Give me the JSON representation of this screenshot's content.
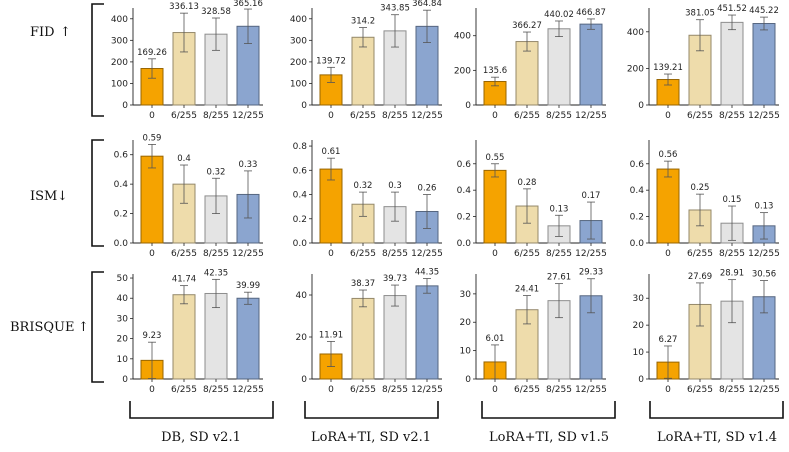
{
  "bar_colors": [
    "#f5a300",
    "#eedcab",
    "#e4e4e4",
    "#8ba5cf"
  ],
  "row_labels": [
    {
      "metric": "FID",
      "arrow": "↑"
    },
    {
      "metric": "ISM",
      "arrow": "↓"
    },
    {
      "metric": "BRISQUE",
      "arrow": "↑"
    }
  ],
  "column_labels": [
    "DB, SD v2.1",
    "LoRA+TI, SD v2.1",
    "LoRA+TI, SD v1.5",
    "LoRA+TI, SD v1.4"
  ],
  "chart_data": [
    {
      "type": "bar",
      "metric": "FID",
      "setting": "DB, SD v2.1",
      "categories": [
        "0",
        "6/255",
        "8/255",
        "12/255"
      ],
      "values": [
        169.26,
        336.13,
        328.58,
        365.16
      ],
      "errors": [
        45,
        90,
        75,
        80
      ],
      "value_labels": [
        "169.26",
        "336.13",
        "328.58",
        "365.16"
      ],
      "ylim": [
        0,
        450
      ],
      "yticks": [
        0,
        100,
        200,
        300,
        400
      ]
    },
    {
      "type": "bar",
      "metric": "FID",
      "setting": "LoRA+TI, SD v2.1",
      "categories": [
        "0",
        "6/255",
        "8/255",
        "12/255"
      ],
      "values": [
        139.72,
        314.2,
        343.85,
        364.84
      ],
      "errors": [
        35,
        45,
        75,
        75
      ],
      "value_labels": [
        "139.72",
        "314.2",
        "343.85",
        "364.84"
      ],
      "ylim": [
        0,
        450
      ],
      "yticks": [
        0,
        100,
        200,
        300,
        400
      ]
    },
    {
      "type": "bar",
      "metric": "FID",
      "setting": "LoRA+TI, SD v1.5",
      "categories": [
        "0",
        "6/255",
        "8/255",
        "12/255"
      ],
      "values": [
        135.6,
        366.27,
        440.02,
        466.87
      ],
      "errors": [
        25,
        55,
        45,
        30
      ],
      "value_labels": [
        "135.6",
        "366.27",
        "440.02",
        "466.87"
      ],
      "ylim": [
        0,
        560
      ],
      "yticks": [
        0,
        200,
        400
      ]
    },
    {
      "type": "bar",
      "metric": "FID",
      "setting": "LoRA+TI, SD v1.4",
      "categories": [
        "0",
        "6/255",
        "8/255",
        "12/255"
      ],
      "values": [
        139.21,
        381.05,
        451.52,
        445.22
      ],
      "errors": [
        30,
        85,
        40,
        35
      ],
      "value_labels": [
        "139.21",
        "381.05",
        "451.52",
        "445.22"
      ],
      "ylim": [
        0,
        530
      ],
      "yticks": [
        0,
        200,
        400
      ]
    },
    {
      "type": "bar",
      "metric": "ISM",
      "setting": "DB, SD v2.1",
      "categories": [
        "0",
        "6/255",
        "8/255",
        "12/255"
      ],
      "values": [
        0.59,
        0.4,
        0.32,
        0.33
      ],
      "errors": [
        0.08,
        0.13,
        0.12,
        0.16
      ],
      "value_labels": [
        "0.59",
        "0.4",
        "0.32",
        "0.33"
      ],
      "ylim": [
        0,
        0.7
      ],
      "yticks": [
        0,
        0.2,
        0.4,
        0.6
      ],
      "ytick_labels": [
        "0.0",
        "0.2",
        "0.4",
        "0.6"
      ]
    },
    {
      "type": "bar",
      "metric": "ISM",
      "setting": "LoRA+TI, SD v2.1",
      "categories": [
        "0",
        "6/255",
        "8/255",
        "12/255"
      ],
      "values": [
        0.61,
        0.32,
        0.3,
        0.26
      ],
      "errors": [
        0.09,
        0.1,
        0.12,
        0.14
      ],
      "value_labels": [
        "0.61",
        "0.32",
        "0.3",
        "0.26"
      ],
      "ylim": [
        0,
        0.85
      ],
      "yticks": [
        0,
        0.2,
        0.4,
        0.6,
        0.8
      ],
      "ytick_labels": [
        "0.0",
        "0.2",
        "0.4",
        "0.6",
        "0.8"
      ]
    },
    {
      "type": "bar",
      "metric": "ISM",
      "setting": "LoRA+TI, SD v1.5",
      "categories": [
        "0",
        "6/255",
        "8/255",
        "12/255"
      ],
      "values": [
        0.55,
        0.28,
        0.13,
        0.17
      ],
      "errors": [
        0.05,
        0.13,
        0.08,
        0.14
      ],
      "value_labels": [
        "0.55",
        "0.28",
        "0.13",
        "0.17"
      ],
      "ylim": [
        0,
        0.78
      ],
      "yticks": [
        0,
        0.2,
        0.4,
        0.6
      ],
      "ytick_labels": [
        "0.0",
        "0.2",
        "0.4",
        "0.6"
      ]
    },
    {
      "type": "bar",
      "metric": "ISM",
      "setting": "LoRA+TI, SD v1.4",
      "categories": [
        "0",
        "6/255",
        "8/255",
        "12/255"
      ],
      "values": [
        0.56,
        0.25,
        0.15,
        0.13
      ],
      "errors": [
        0.06,
        0.12,
        0.13,
        0.1
      ],
      "value_labels": [
        "0.56",
        "0.25",
        "0.15",
        "0.13"
      ],
      "ylim": [
        0,
        0.78
      ],
      "yticks": [
        0,
        0.2,
        0.4,
        0.6
      ],
      "ytick_labels": [
        "0.0",
        "0.2",
        "0.4",
        "0.6"
      ]
    },
    {
      "type": "bar",
      "metric": "BRISQUE",
      "setting": "DB, SD v2.1",
      "categories": [
        "0",
        "6/255",
        "8/255",
        "12/255"
      ],
      "values": [
        9.23,
        41.74,
        42.35,
        39.99
      ],
      "errors": [
        9,
        4.5,
        7,
        3
      ],
      "value_labels": [
        "9.23",
        "41.74",
        "42.35",
        "39.99"
      ],
      "ylim": [
        0,
        52
      ],
      "yticks": [
        0,
        10,
        20,
        30,
        40,
        50
      ]
    },
    {
      "type": "bar",
      "metric": "BRISQUE",
      "setting": "LoRA+TI, SD v2.1",
      "categories": [
        "0",
        "6/255",
        "8/255",
        "12/255"
      ],
      "values": [
        11.91,
        38.37,
        39.73,
        44.35
      ],
      "errors": [
        6,
        4,
        5,
        3.5
      ],
      "value_labels": [
        "11.91",
        "38.37",
        "39.73",
        "44.35"
      ],
      "ylim": [
        0,
        50
      ],
      "yticks": [
        0,
        20,
        40
      ]
    },
    {
      "type": "bar",
      "metric": "BRISQUE",
      "setting": "LoRA+TI, SD v1.5",
      "categories": [
        "0",
        "6/255",
        "8/255",
        "12/255"
      ],
      "values": [
        6.01,
        24.41,
        27.61,
        29.33
      ],
      "errors": [
        6,
        5,
        6,
        6
      ],
      "value_labels": [
        "6.01",
        "24.41",
        "27.61",
        "29.33"
      ],
      "ylim": [
        0,
        37
      ],
      "yticks": [
        0,
        10,
        20,
        30
      ]
    },
    {
      "type": "bar",
      "metric": "BRISQUE",
      "setting": "LoRA+TI, SD v1.4",
      "categories": [
        "0",
        "6/255",
        "8/255",
        "12/255"
      ],
      "values": [
        6.27,
        27.69,
        28.91,
        30.56
      ],
      "errors": [
        6,
        8,
        8,
        6
      ],
      "value_labels": [
        "6.27",
        "27.69",
        "28.91",
        "30.56"
      ],
      "ylim": [
        0,
        39
      ],
      "yticks": [
        0,
        10,
        20,
        30
      ]
    }
  ]
}
